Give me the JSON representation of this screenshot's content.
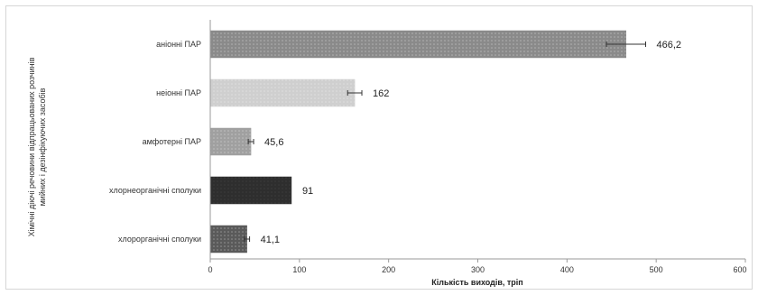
{
  "chart_data": {
    "type": "bar",
    "orientation": "horizontal",
    "categories": [
      "аніонні ПАР",
      "неіонні ПАР",
      "амфотерні ПАР",
      "хлорнеорганічні сполуки",
      "хлорорганічні сполуки"
    ],
    "values": [
      466.2,
      162,
      45.6,
      91,
      41.1
    ],
    "value_labels": [
      "466,2",
      "162",
      "45,6",
      "91",
      "41,1"
    ],
    "errors": [
      22,
      8,
      3,
      0,
      3
    ],
    "xlabel": "Кількість виходів, тріп",
    "ylabel_lines": [
      "Хімічні діючі речовини відпрацьованих розчинів",
      "мийних і дезінфікуючих засобів"
    ],
    "xlim": [
      0,
      600
    ],
    "xticks": [
      0,
      100,
      200,
      300,
      400,
      500,
      600
    ],
    "grid": false,
    "legend": "none",
    "bar_colors": [
      "#8a8a8a",
      "#cfcfcf",
      "#a0a0a0",
      "#2e2e2e",
      "#5a5a5a"
    ]
  }
}
